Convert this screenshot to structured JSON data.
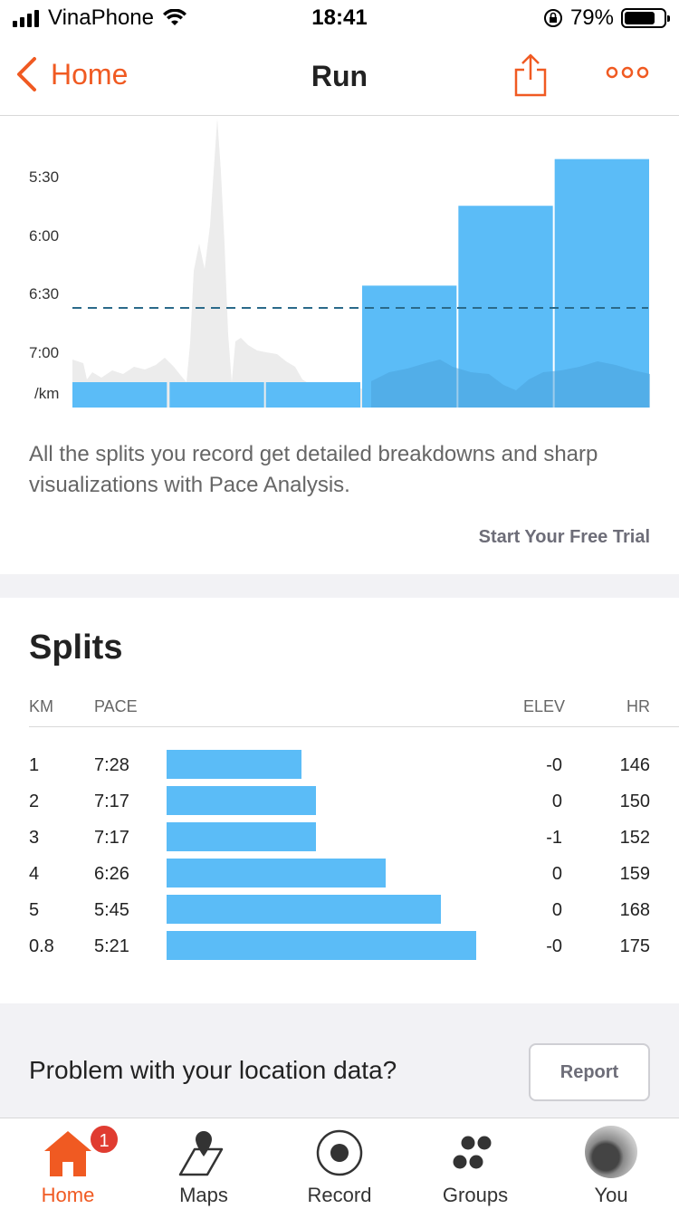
{
  "status_bar": {
    "carrier": "VinaPhone",
    "time": "18:41",
    "battery": "79%",
    "battery_level": 0.79
  },
  "nav": {
    "back_label": "Home",
    "title": "Run"
  },
  "chart_data": {
    "type": "bar",
    "ylabels": [
      "5:30",
      "6:00",
      "6:30",
      "7:00",
      "/km"
    ],
    "categories": [
      "1",
      "2",
      "3",
      "4",
      "5",
      "0.8"
    ],
    "values": [
      "7:28",
      "7:17",
      "7:17",
      "6:26",
      "5:45",
      "5:21"
    ],
    "values_seconds": [
      448,
      437,
      437,
      386,
      345,
      321
    ],
    "average_line": true,
    "elevation_profile_shown": true,
    "bar_color": "#5bbcf7"
  },
  "promo": {
    "text": "All the splits you record get detailed breakdowns and sharp visualizations with Pace Analysis.",
    "link": "Start Your Free Trial"
  },
  "splits": {
    "title": "Splits",
    "headers": {
      "km": "KM",
      "pace": "PACE",
      "elev": "ELEV",
      "hr": "HR"
    },
    "rows": [
      {
        "km": "1",
        "pace": "7:28",
        "elev": "-0",
        "hr": "146",
        "fraction": 0.25
      },
      {
        "km": "2",
        "pace": "7:17",
        "elev": "0",
        "hr": "150",
        "fraction": 0.31
      },
      {
        "km": "3",
        "pace": "7:17",
        "elev": "-1",
        "hr": "152",
        "fraction": 0.31
      },
      {
        "km": "4",
        "pace": "6:26",
        "elev": "0",
        "hr": "159",
        "fraction": 0.61
      },
      {
        "km": "5",
        "pace": "5:45",
        "elev": "0",
        "hr": "168",
        "fraction": 0.85
      },
      {
        "km": "0.8",
        "pace": "5:21",
        "elev": "-0",
        "hr": "175",
        "fraction": 1.0
      }
    ]
  },
  "problem": {
    "text": "Problem with your location data?",
    "button": "Report"
  },
  "tabs": [
    {
      "label": "Home",
      "badge": "1",
      "active": true
    },
    {
      "label": "Maps"
    },
    {
      "label": "Record"
    },
    {
      "label": "Groups"
    },
    {
      "label": "You"
    }
  ],
  "colors": {
    "accent": "#f05a22",
    "bar": "#5bbcf7",
    "avg_line": "#2b6a8a"
  }
}
